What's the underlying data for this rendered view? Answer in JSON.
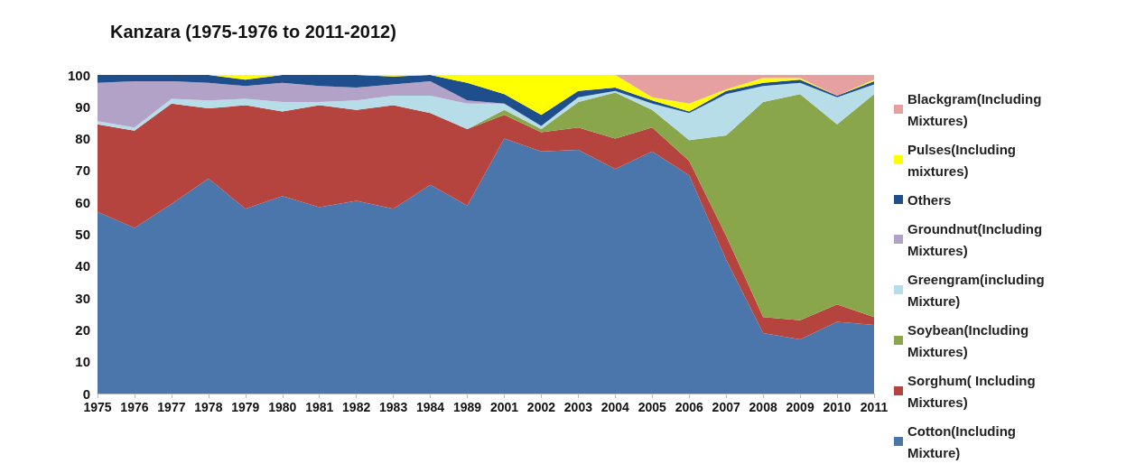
{
  "chart_data": {
    "type": "area",
    "stacked": true,
    "title": "Kanzara (1975-1976 to 2011-2012)",
    "categories": [
      "1975",
      "1976",
      "1977",
      "1978",
      "1979",
      "1980",
      "1981",
      "1982",
      "1983",
      "1984",
      "1989",
      "2001",
      "2002",
      "2003",
      "2004",
      "2005",
      "2006",
      "2007",
      "2008",
      "2009",
      "2010",
      "2011"
    ],
    "ylim": [
      0,
      100
    ],
    "yticks": [
      0,
      10,
      20,
      30,
      40,
      50,
      60,
      70,
      80,
      90,
      100
    ],
    "grid": false,
    "legend": "right",
    "series": [
      {
        "name": "Cotton(Including Mixture)",
        "color": "#4a76ac",
        "values": [
          57,
          52,
          59.5,
          67.5,
          58,
          62,
          58.5,
          60.5,
          58,
          65.5,
          59,
          80,
          76,
          76.5,
          70.5,
          76,
          68.5,
          42,
          19,
          17,
          22.5,
          21.5
        ]
      },
      {
        "name": "Sorghum( Including Mixtures)",
        "color": "#b5443e",
        "values": [
          27.5,
          30.5,
          31.5,
          22,
          32.5,
          26.5,
          32,
          28.5,
          32.5,
          22.5,
          24,
          7.5,
          6,
          7,
          9.5,
          7.5,
          4.5,
          7.5,
          5,
          6,
          5.5,
          2.5
        ]
      },
      {
        "name": "Soybean(Including Mixtures)",
        "color": "#8aa64a",
        "values": [
          0,
          0,
          0,
          0,
          0,
          0,
          0,
          0,
          0,
          0,
          0,
          1.5,
          1,
          8,
          14.5,
          5.5,
          6.5,
          31.5,
          67.5,
          71,
          56.5,
          70
        ]
      },
      {
        "name": "Greengram(including Mixture)",
        "color": "#b7dde8",
        "values": [
          1,
          1,
          1.5,
          2.5,
          2,
          3,
          1,
          3,
          3,
          5.5,
          8,
          2,
          1,
          1.5,
          0.5,
          2,
          8.5,
          13,
          5,
          3.5,
          8.5,
          3
        ]
      },
      {
        "name": "Groundnut(Including Mixtures)",
        "color": "#b3a2c7",
        "values": [
          12,
          14.5,
          5.5,
          5.5,
          4,
          6,
          5,
          4,
          3.5,
          4.5,
          1,
          0,
          0,
          0,
          0,
          0,
          0,
          0,
          0,
          0,
          0,
          0
        ]
      },
      {
        "name": "Others",
        "color": "#1f4e8c",
        "values": [
          2.5,
          2,
          2,
          2.5,
          2,
          2.5,
          3.5,
          4,
          2.5,
          2,
          5.5,
          3,
          3.5,
          2,
          1,
          1,
          0.5,
          1,
          1,
          1,
          0.5,
          1
        ]
      },
      {
        "name": "Pulses(Including mixtures)",
        "color": "#ffff00",
        "values": [
          0,
          0,
          0,
          0,
          1.5,
          0,
          0,
          0,
          0.5,
          0,
          2.5,
          6,
          12.5,
          5,
          4,
          1,
          2.5,
          0.5,
          1.5,
          0.5,
          0,
          0.5
        ]
      },
      {
        "name": "Blackgram(Including Mixtures)",
        "color": "#e6a0a0",
        "values": [
          0,
          0,
          0,
          0,
          0,
          0,
          0,
          0,
          0,
          0,
          0,
          0,
          0,
          0,
          0,
          7,
          9,
          4.5,
          1,
          1,
          6.5,
          1.5
        ]
      }
    ]
  }
}
